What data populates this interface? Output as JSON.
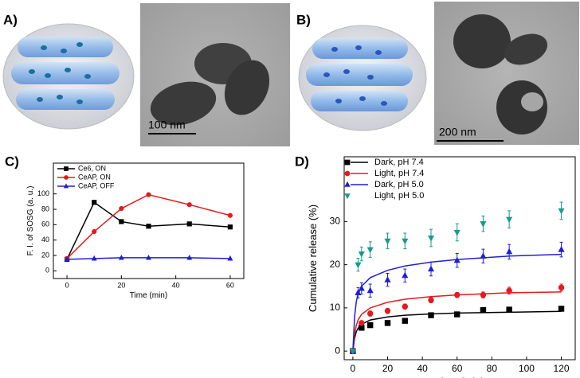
{
  "figure": {
    "labels": [
      "A)",
      "B)",
      "C)",
      "D)"
    ],
    "scale_bars": [
      "100 nm",
      "200 nm"
    ]
  },
  "chart_data": [
    {
      "type": "line",
      "x_label": "Time (min)",
      "y_label": "F. I. of SOSG (a. u.)",
      "x": [
        0,
        10,
        20,
        30,
        45,
        60
      ],
      "xlim": [
        -5,
        65
      ],
      "xticks": [
        0,
        20,
        40,
        60
      ],
      "ylim": [
        -10,
        140
      ],
      "yticks": [
        0,
        20,
        40,
        60,
        80,
        100
      ],
      "legend": "upper left",
      "series": [
        {
          "name": "Ce6, ON",
          "color": "#000000",
          "marker": "square",
          "values": [
            15,
            89,
            64,
            58,
            61,
            57
          ]
        },
        {
          "name": "CeAP, ON",
          "color": "#e41a1c",
          "marker": "circle",
          "values": [
            16,
            51,
            81,
            99,
            86,
            72
          ]
        },
        {
          "name": "CeAP, OFF",
          "color": "#1f1fd6",
          "marker": "triangle-up",
          "values": [
            15,
            16,
            17,
            17,
            17,
            16
          ]
        }
      ]
    },
    {
      "type": "scatter",
      "x_label": "Time (min)",
      "y_label": "Cumulative release (%)",
      "x": [
        0,
        3,
        5,
        10,
        20,
        30,
        45,
        60,
        75,
        90,
        120
      ],
      "fit_x": [
        0,
        1,
        2,
        3,
        5,
        10,
        20,
        30,
        45,
        60,
        90,
        120
      ],
      "xlim": [
        -5,
        128
      ],
      "xticks": [
        0,
        20,
        40,
        60,
        80,
        100,
        120
      ],
      "ylim": [
        -2,
        45
      ],
      "yticks": [
        0,
        10,
        20,
        30
      ],
      "legend": "upper left",
      "series": [
        {
          "name": "Dark, pH 7.4",
          "color": "#000000",
          "marker": "square",
          "values": [
            0,
            null,
            5.4,
            6,
            6.5,
            7,
            8.3,
            8.5,
            9.5,
            9.6,
            9.8
          ],
          "errors": [
            0.3,
            null,
            0.4,
            0.4,
            0.4,
            0.4,
            0.4,
            0.4,
            0.5,
            0.5,
            0.5
          ],
          "fit": [
            0,
            3,
            4.5,
            5.3,
            6.2,
            7.2,
            7.9,
            8.3,
            8.6,
            8.8,
            9.0,
            9.2
          ]
        },
        {
          "name": "Light, pH 7.4",
          "color": "#e41a1c",
          "marker": "circle",
          "values": [
            0,
            null,
            6.5,
            8.7,
            9.3,
            10.3,
            11.8,
            13,
            13,
            14,
            14.7
          ],
          "errors": [
            0.3,
            null,
            0.5,
            0.6,
            0.6,
            0.6,
            0.6,
            0.6,
            0.7,
            0.8,
            0.8
          ],
          "fit": [
            0,
            4,
            6,
            7.2,
            8.5,
            10,
            11.3,
            12,
            12.6,
            13,
            13.5,
            13.7
          ]
        },
        {
          "name": "Dark, pH 5.0",
          "color": "#1f1fd6",
          "marker": "triangle-up",
          "values": [
            0,
            13.5,
            14.5,
            14,
            16.5,
            17.5,
            19,
            21,
            22,
            23,
            23.5
          ],
          "errors": [
            0.3,
            1.2,
            1.3,
            1.5,
            1.5,
            1.5,
            1.6,
            1.6,
            1.6,
            1.7,
            1.7
          ],
          "fit": [
            0,
            8,
            11.5,
            13.2,
            15,
            17,
            18.7,
            19.7,
            20.6,
            21.2,
            22,
            22.4
          ]
        },
        {
          "name": "Light, pH 5.0",
          "color": "#1a9a8a",
          "marker": "triangle-down",
          "values": [
            0,
            20,
            22.5,
            23.5,
            25.5,
            25.5,
            26.2,
            27.5,
            29.5,
            30.5,
            32.5
          ],
          "errors": [
            0.3,
            1.5,
            1.6,
            1.8,
            1.8,
            1.8,
            2,
            2,
            1.8,
            2,
            2
          ]
        }
      ]
    }
  ]
}
